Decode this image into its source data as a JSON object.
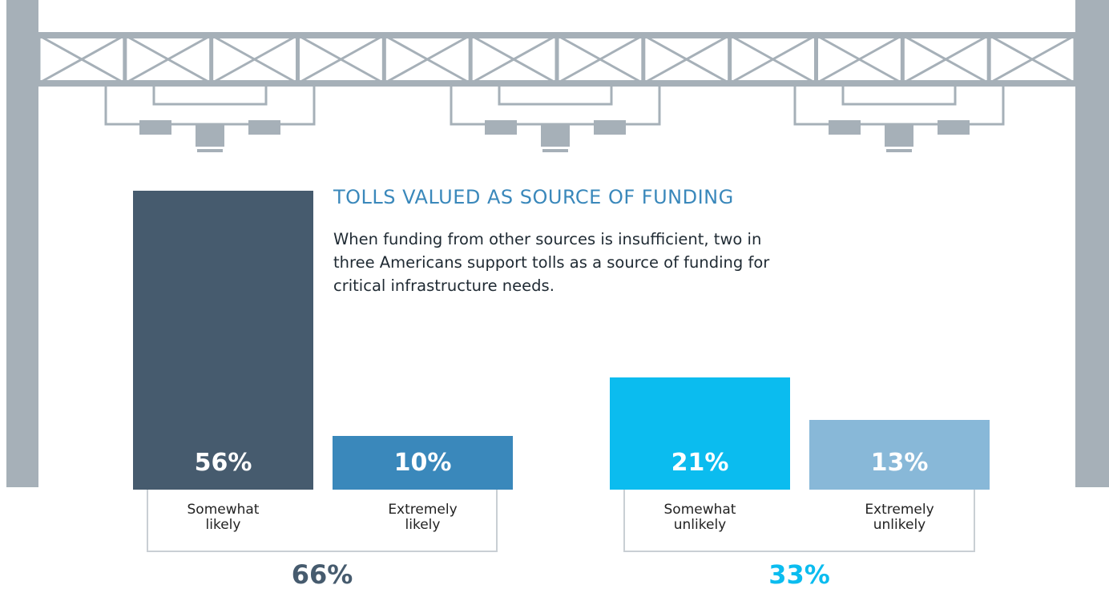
{
  "chart_data": {
    "type": "bar",
    "title": "TOLLS VALUED AS SOURCE OF FUNDING",
    "subtitle": "When funding from other sources is insufficient, two in three Americans support tolls as a source of funding for critical infrastructure needs.",
    "categories": [
      "Somewhat likely",
      "Extremely likely",
      "Somewhat unlikely",
      "Extremely unlikely"
    ],
    "values": [
      56,
      10,
      21,
      13
    ],
    "value_labels": [
      "56%",
      "10%",
      "21%",
      "13%"
    ],
    "colors": [
      "#465b6e",
      "#3a88bb",
      "#0bbcef",
      "#88b8d8"
    ],
    "group_totals": {
      "values": [
        66,
        33
      ],
      "value_labels": [
        "66%",
        "33%"
      ],
      "colors": [
        "#465b6e",
        "#0bbcef"
      ]
    }
  }
}
